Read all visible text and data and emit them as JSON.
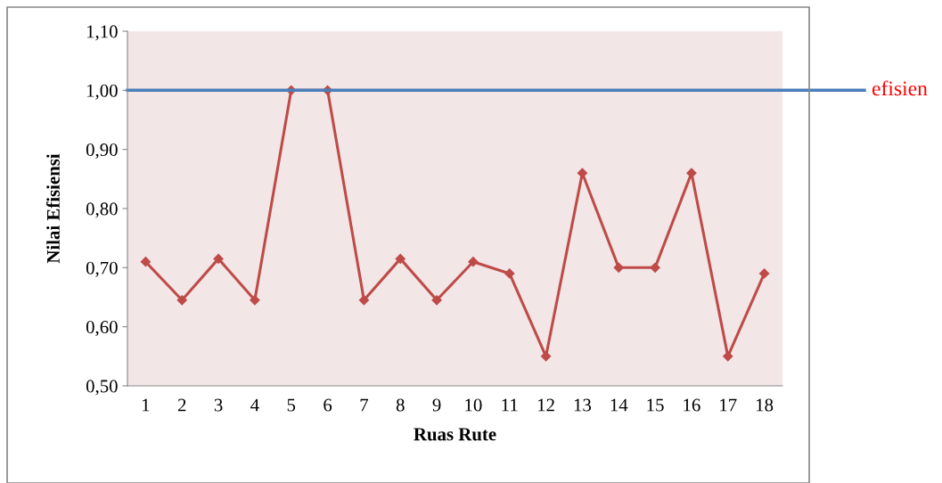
{
  "chart_data": {
    "type": "line",
    "xlabel": "Ruas Rute",
    "ylabel": "Nilai Efisiensi",
    "categories": [
      "1",
      "2",
      "3",
      "4",
      "5",
      "6",
      "7",
      "8",
      "9",
      "10",
      "11",
      "12",
      "13",
      "14",
      "15",
      "16",
      "17",
      "18"
    ],
    "series": [
      {
        "color": "#be4b48",
        "values": [
          0.71,
          0.645,
          0.715,
          0.645,
          1.0,
          1.0,
          0.645,
          0.715,
          0.645,
          0.71,
          0.69,
          0.55,
          0.86,
          0.7,
          0.7,
          0.86,
          0.55,
          0.69
        ]
      }
    ],
    "marker": "diamond",
    "line_style": "solid",
    "grid": false,
    "legend": false,
    "ylim": [
      0.5,
      1.1
    ],
    "yticks": [
      {
        "value": 0.5,
        "label": "0,50"
      },
      {
        "value": 0.6,
        "label": "0,60"
      },
      {
        "value": 0.7,
        "label": "0,70"
      },
      {
        "value": 0.8,
        "label": "0,80"
      },
      {
        "value": 0.9,
        "label": "0,90"
      },
      {
        "value": 1.0,
        "label": "1,00"
      },
      {
        "value": 1.1,
        "label": "1,10"
      }
    ],
    "ref_lines": [
      {
        "axis": "y",
        "value": 1.0,
        "label": "efisien",
        "color": "#4a7ebb"
      }
    ]
  }
}
